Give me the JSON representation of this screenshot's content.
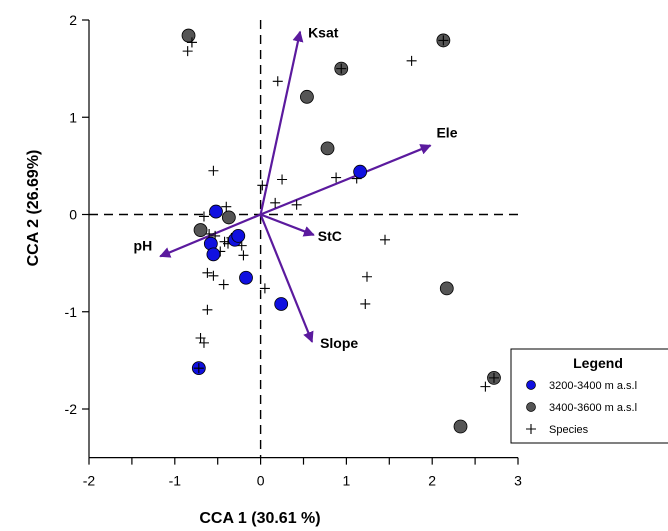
{
  "chart_data": {
    "type": "scatter",
    "title": "",
    "xlabel": "CCA 1 (30.61 %)",
    "ylabel": "CCA 2 (26.69%)",
    "xlim": [
      -2.0,
      3.0
    ],
    "ylim": [
      -2.5,
      2.0
    ],
    "x_ticks": [
      "-2",
      "-1",
      "0",
      "1",
      "2",
      "3"
    ],
    "y_ticks": [
      "-2",
      "-1",
      "0",
      "1",
      "2"
    ],
    "x_tick_values": [
      -2,
      -1,
      0,
      1,
      2,
      3
    ],
    "y_tick_values": [
      -2,
      -1,
      0,
      1,
      2
    ],
    "x_minor_ticks": [
      -1.5,
      -0.5,
      0.5,
      1.5,
      2.5
    ],
    "reference_lines": "dashed lines at x = 0 and y = 0",
    "series": [
      {
        "name": "3200-3400 m a.s.l",
        "marker": "filled circle",
        "color": "#1010e0",
        "points": [
          {
            "x": -0.72,
            "y": -1.58
          },
          {
            "x": -0.52,
            "y": 0.03
          },
          {
            "x": -0.58,
            "y": -0.3
          },
          {
            "x": -0.55,
            "y": -0.41
          },
          {
            "x": -0.3,
            "y": -0.26
          },
          {
            "x": -0.26,
            "y": -0.22
          },
          {
            "x": -0.17,
            "y": -0.65
          },
          {
            "x": 0.24,
            "y": -0.92
          },
          {
            "x": 1.16,
            "y": 0.44
          }
        ]
      },
      {
        "name": "3400-3600 m a.s.l",
        "marker": "filled circle",
        "color": "#555555",
        "points": [
          {
            "x": -0.84,
            "y": 1.84
          },
          {
            "x": -0.7,
            "y": -0.16
          },
          {
            "x": -0.37,
            "y": -0.03
          },
          {
            "x": 0.54,
            "y": 1.21
          },
          {
            "x": 0.78,
            "y": 0.68
          },
          {
            "x": 0.94,
            "y": 1.5
          },
          {
            "x": 2.13,
            "y": 1.79
          },
          {
            "x": 2.17,
            "y": -0.76
          },
          {
            "x": 2.33,
            "y": -2.18
          },
          {
            "x": 2.72,
            "y": -1.68
          }
        ]
      },
      {
        "name": "Species",
        "marker": "plus",
        "color": "#000000",
        "points": [
          {
            "x": -0.8,
            "y": 1.77
          },
          {
            "x": -0.85,
            "y": 1.68
          },
          {
            "x": 0.2,
            "y": 1.37
          },
          {
            "x": 1.76,
            "y": 1.58
          },
          {
            "x": 1.12,
            "y": 0.37
          },
          {
            "x": 0.88,
            "y": 0.38
          },
          {
            "x": 0.25,
            "y": 0.36
          },
          {
            "x": 0.02,
            "y": 0.3
          },
          {
            "x": -0.55,
            "y": 0.45
          },
          {
            "x": -0.4,
            "y": 0.08
          },
          {
            "x": 0.42,
            "y": 0.1
          },
          {
            "x": 0.17,
            "y": 0.12
          },
          {
            "x": -0.66,
            "y": -0.02
          },
          {
            "x": -0.6,
            "y": -0.2
          },
          {
            "x": -0.53,
            "y": -0.22
          },
          {
            "x": -0.47,
            "y": -0.38
          },
          {
            "x": -0.42,
            "y": -0.28
          },
          {
            "x": -0.38,
            "y": -0.3
          },
          {
            "x": -0.34,
            "y": -0.24
          },
          {
            "x": -0.22,
            "y": -0.32
          },
          {
            "x": -0.2,
            "y": -0.42
          },
          {
            "x": -0.43,
            "y": -0.72
          },
          {
            "x": -0.55,
            "y": -0.63
          },
          {
            "x": -0.62,
            "y": -0.6
          },
          {
            "x": -0.62,
            "y": -0.98
          },
          {
            "x": -0.7,
            "y": -1.27
          },
          {
            "x": -0.66,
            "y": -1.32
          },
          {
            "x": 0.05,
            "y": -0.76
          },
          {
            "x": 1.45,
            "y": -0.26
          },
          {
            "x": 1.24,
            "y": -0.64
          },
          {
            "x": 1.22,
            "y": -0.92
          },
          {
            "x": 2.62,
            "y": -1.77
          }
        ]
      }
    ],
    "vectors": {
      "color": "#5b1a9e",
      "items": [
        {
          "label": "Ksat",
          "x": 0.46,
          "y": 1.88
        },
        {
          "label": "Ele",
          "x": 1.98,
          "y": 0.71
        },
        {
          "label": "StC",
          "x": 0.62,
          "y": -0.21
        },
        {
          "label": "pH",
          "x": -1.17,
          "y": -0.43
        },
        {
          "label": "Slope",
          "x": 0.6,
          "y": -1.31
        }
      ]
    },
    "legend": {
      "title": "Legend",
      "position": "bottom-right",
      "entries": [
        "3200-3400 m a.s.l",
        "3400-3600 m a.s.l",
        "Species"
      ]
    },
    "grid": false
  }
}
